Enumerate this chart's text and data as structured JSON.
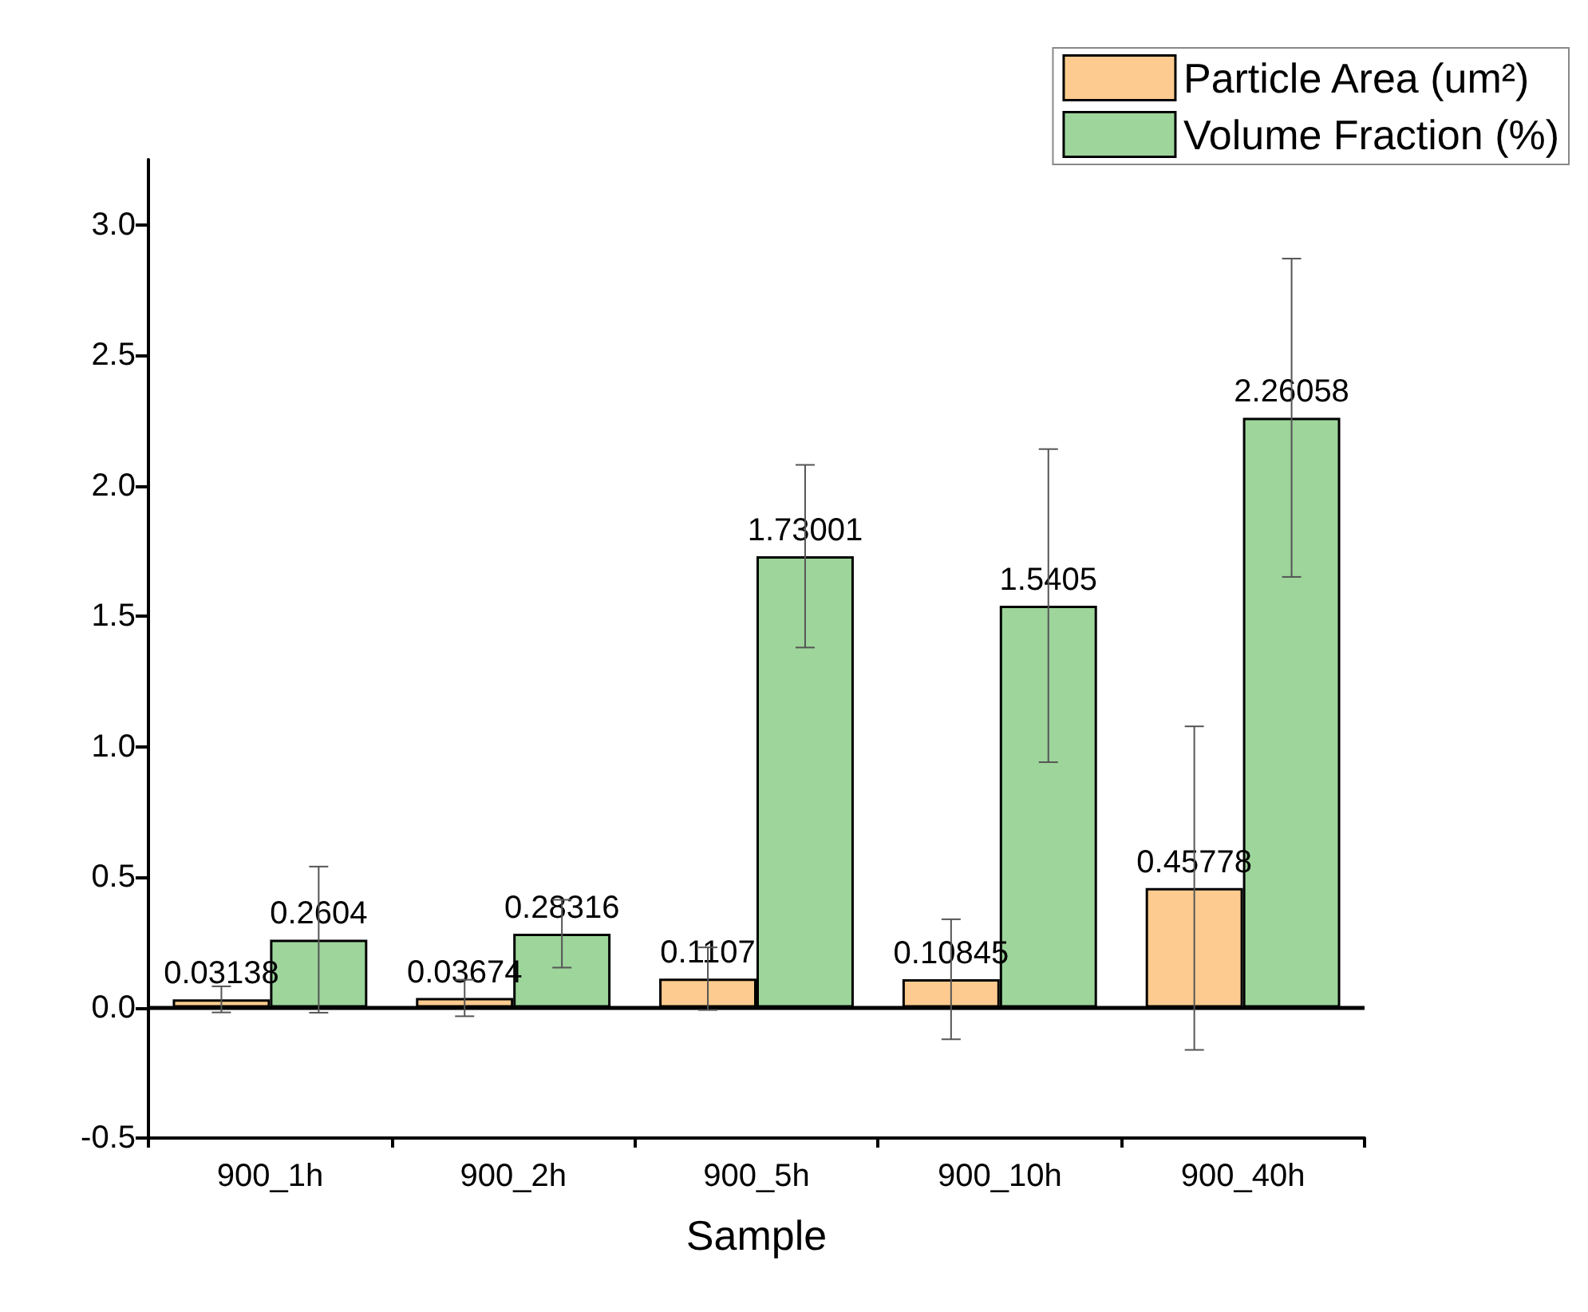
{
  "chart_data": {
    "type": "bar",
    "xlabel": "Sample",
    "categories": [
      "900_1h",
      "900_2h",
      "900_5h",
      "900_10h",
      "900_40h"
    ],
    "series": [
      {
        "name": "Particle Area (um²)",
        "color": "#fdcb8f",
        "values": [
          0.03138,
          0.03674,
          0.1107,
          0.10845,
          0.45778
        ],
        "errors": [
          0.05,
          0.07,
          0.12,
          0.23,
          0.62
        ]
      },
      {
        "name": "Volume Fraction (%)",
        "color": "#9dd59b",
        "values": [
          0.2604,
          0.28316,
          1.73001,
          1.5405,
          2.26058
        ],
        "errors": [
          0.28,
          0.13,
          0.35,
          0.6,
          0.61
        ]
      }
    ],
    "ylim": [
      -0.5,
      3.25
    ],
    "yticks": [
      -0.5,
      {
        "value": 0,
        "label": "0.0"
      },
      0.5,
      {
        "value": 1,
        "label": "1.0"
      },
      1.5,
      {
        "value": 2,
        "label": "2.0"
      },
      2.5,
      {
        "value": 3,
        "label": "3.0"
      }
    ],
    "ref_lines": [
      {
        "axis": "y",
        "value": 0
      }
    ],
    "data_labels": true,
    "legend": "top right",
    "grid": false
  }
}
